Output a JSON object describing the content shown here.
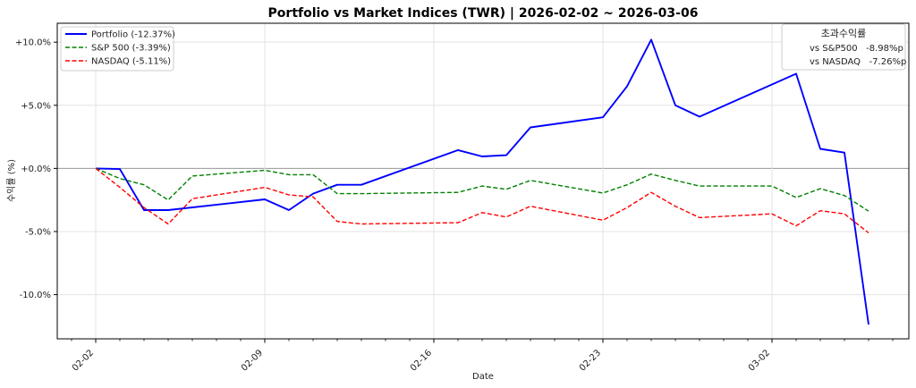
{
  "chart_data": {
    "type": "line",
    "title": "Portfolio vs Market Indices (TWR) | 2026-02-02 ~ 2026-03-06",
    "xlabel": "Date",
    "ylabel": "수익률 (%)",
    "xlim": [
      "2026-02-02",
      "2026-03-06"
    ],
    "ylim": [
      -13.5,
      11.5
    ],
    "grid": true,
    "legend_position": "top-left",
    "x_ticks": [
      "2026-02-02",
      "2026-02-09",
      "2026-02-16",
      "2026-02-23",
      "2026-03-02"
    ],
    "x_tick_labels": [
      "02-02",
      "02-09",
      "02-16",
      "02-23",
      "03-02"
    ],
    "y_ticks": [
      10,
      5,
      0,
      -5,
      -10
    ],
    "y_tick_labels": [
      "+10.0%",
      "+5.0%",
      "+0.0%",
      "-5.0%",
      "-10.0%"
    ],
    "series": [
      {
        "name": "Portfolio (-12.37%)",
        "color": "#0000ff",
        "style": "solid",
        "x": [
          "2026-02-02",
          "2026-02-03",
          "2026-02-04",
          "2026-02-05",
          "2026-02-09",
          "2026-02-10",
          "2026-02-11",
          "2026-02-12",
          "2026-02-13",
          "2026-02-17",
          "2026-02-18",
          "2026-02-19",
          "2026-02-20",
          "2026-02-23",
          "2026-02-24",
          "2026-02-25",
          "2026-02-26",
          "2026-02-27",
          "2026-03-03",
          "2026-03-04",
          "2026-03-05",
          "2026-03-06"
        ],
        "values": [
          0.0,
          -0.05,
          -3.3,
          -3.3,
          -2.45,
          -3.3,
          -2.0,
          -1.3,
          -1.3,
          1.45,
          0.95,
          1.05,
          3.25,
          4.05,
          6.5,
          10.2,
          5.0,
          4.1,
          7.5,
          1.55,
          1.25,
          -12.37
        ]
      },
      {
        "name": "S&P 500 (-3.39%)",
        "color": "#008000",
        "style": "dashed",
        "x": [
          "2026-02-02",
          "2026-02-03",
          "2026-02-04",
          "2026-02-05",
          "2026-02-06",
          "2026-02-09",
          "2026-02-10",
          "2026-02-11",
          "2026-02-12",
          "2026-02-13",
          "2026-02-17",
          "2026-02-18",
          "2026-02-19",
          "2026-02-20",
          "2026-02-23",
          "2026-02-24",
          "2026-02-25",
          "2026-02-26",
          "2026-02-27",
          "2026-03-02",
          "2026-03-03",
          "2026-03-04",
          "2026-03-05",
          "2026-03-06"
        ],
        "values": [
          0.0,
          -0.8,
          -1.3,
          -2.5,
          -0.6,
          -0.15,
          -0.5,
          -0.5,
          -2.0,
          -2.0,
          -1.9,
          -1.4,
          -1.65,
          -0.95,
          -1.95,
          -1.3,
          -0.45,
          -0.95,
          -1.4,
          -1.4,
          -2.3,
          -1.6,
          -2.15,
          -3.39
        ]
      },
      {
        "name": "NASDAQ (-5.11%)",
        "color": "#ff0000",
        "style": "dashed",
        "x": [
          "2026-02-02",
          "2026-02-03",
          "2026-02-04",
          "2026-02-05",
          "2026-02-06",
          "2026-02-09",
          "2026-02-10",
          "2026-02-11",
          "2026-02-12",
          "2026-02-13",
          "2026-02-17",
          "2026-02-18",
          "2026-02-19",
          "2026-02-20",
          "2026-02-23",
          "2026-02-24",
          "2026-02-25",
          "2026-02-26",
          "2026-02-27",
          "2026-03-02",
          "2026-03-03",
          "2026-03-04",
          "2026-03-05",
          "2026-03-06"
        ],
        "values": [
          0.0,
          -1.5,
          -3.1,
          -4.4,
          -2.4,
          -1.5,
          -2.1,
          -2.25,
          -4.2,
          -4.4,
          -4.3,
          -3.5,
          -3.85,
          -3.0,
          -4.1,
          -3.1,
          -1.9,
          -3.0,
          -3.9,
          -3.6,
          -4.55,
          -3.35,
          -3.6,
          -5.11
        ]
      }
    ],
    "annotation_box": {
      "title": "초과수익률",
      "lines": [
        "vs S&P500   -8.98%p",
        "vs NASDAQ   -7.26%p"
      ],
      "position": "top-right"
    }
  }
}
